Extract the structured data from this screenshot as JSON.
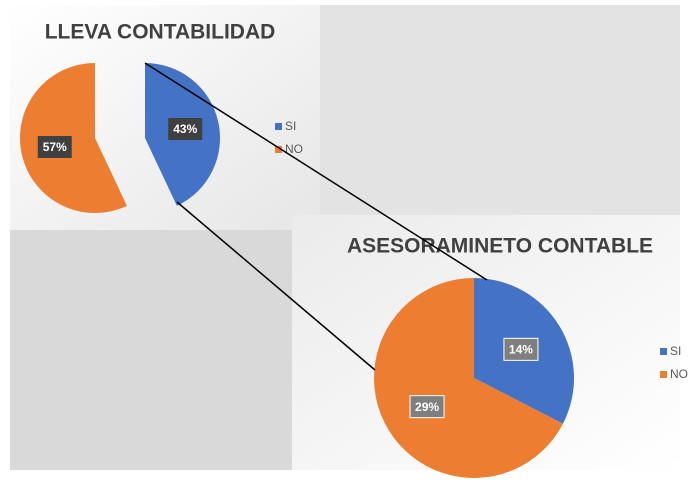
{
  "chart_data": [
    {
      "type": "pie",
      "title": "LLEVA CONTABILIDAD",
      "categories": [
        "SI",
        "NO"
      ],
      "values": [
        43,
        57
      ],
      "value_labels": [
        "43%",
        "57%"
      ],
      "colors": [
        "#4472c4",
        "#ed7d31"
      ],
      "legend": "right"
    },
    {
      "type": "pie",
      "title": "ASESORAMINETO CONTABLE",
      "categories": [
        "SI",
        "NO"
      ],
      "values": [
        14,
        29
      ],
      "value_labels": [
        "14%",
        "29%"
      ],
      "colors": [
        "#4472c4",
        "#ed7d31"
      ],
      "legend": "right"
    }
  ]
}
